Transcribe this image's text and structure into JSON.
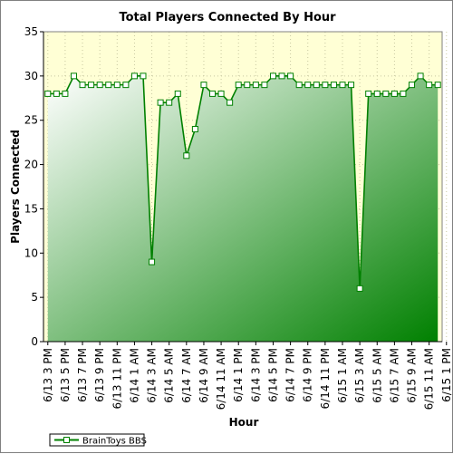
{
  "chart_data": {
    "type": "line",
    "title": "Total Players Connected By Hour",
    "xlabel": "Hour",
    "ylabel": "Players Connected",
    "ylim": [
      0,
      35
    ],
    "yticks": [
      0,
      5,
      10,
      15,
      20,
      25,
      30,
      35
    ],
    "grid": true,
    "legend_position": "bottom-left",
    "x_tick_labels": [
      "6/13 3 PM",
      "6/13 5 PM",
      "6/13 7 PM",
      "6/13 9 PM",
      "6/13 11 PM",
      "6/14 1 AM",
      "6/14 3 AM",
      "6/14 5 AM",
      "6/14 7 AM",
      "6/14 9 AM",
      "6/14 11 AM",
      "6/14 1 PM",
      "6/14 3 PM",
      "6/14 5 PM",
      "6/14 7 PM",
      "6/14 9 PM",
      "6/14 11 PM",
      "6/15 1 AM",
      "6/15 3 AM",
      "6/15 5 AM",
      "6/15 7 AM",
      "6/15 9 AM",
      "6/15 11 AM",
      "6/15 1 PM"
    ],
    "series": [
      {
        "name": "BrainToys BBS",
        "color": "#008000",
        "values": [
          28,
          28,
          28,
          30,
          29,
          29,
          29,
          29,
          29,
          29,
          30,
          30,
          9,
          27,
          27,
          28,
          21,
          24,
          29,
          28,
          28,
          27,
          29,
          29,
          29,
          29,
          30,
          30,
          30,
          29,
          29,
          29,
          29,
          29,
          29,
          29,
          6,
          28,
          28,
          28,
          28,
          28,
          29,
          30,
          29,
          29
        ]
      }
    ],
    "colors": {
      "plot_top": "#ffffd5",
      "gradient_light": "#ffffff",
      "gradient_dark": "#008000",
      "line": "#008000",
      "grid": "#c8c8a0"
    }
  }
}
